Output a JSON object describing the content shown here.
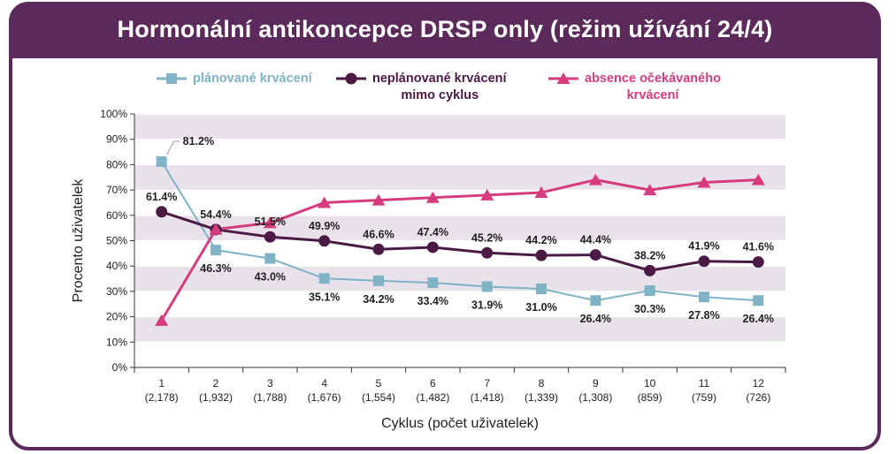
{
  "header": {
    "title": "Hormonální antikoncepce DRSP only (režim užívání 24/4)"
  },
  "colors": {
    "frame": "#5b2a5a",
    "planned": "#7fb3c5",
    "unplanned": "#4a1a45",
    "absence": "#d63c7d",
    "band": "#eae2ea"
  },
  "chart_data": {
    "type": "line",
    "title": "",
    "xlabel": "Cyklus (počet uživatelek)",
    "ylabel": "Procento uživatelek",
    "ylim": [
      0,
      100
    ],
    "yticks": [
      "0%",
      "10%",
      "20%",
      "30%",
      "40%",
      "50%",
      "60%",
      "70%",
      "80%",
      "90%",
      "100%"
    ],
    "categories": [
      "1",
      "2",
      "3",
      "4",
      "5",
      "6",
      "7",
      "8",
      "9",
      "10",
      "11",
      "12"
    ],
    "category_sublabels": [
      "(2,178)",
      "(1,932)",
      "(1,788)",
      "(1,676)",
      "(1,554)",
      "(1,482)",
      "(1,418)",
      "(1,339)",
      "(1,308)",
      "(859)",
      "(759)",
      "(726)"
    ],
    "legend_position": "top",
    "series": [
      {
        "name": "plánované krvácení",
        "marker": "square",
        "color": "#7fb3c5",
        "values": [
          81.2,
          46.3,
          43.0,
          35.1,
          34.2,
          33.4,
          31.9,
          31.0,
          26.4,
          30.3,
          27.8,
          26.4
        ],
        "labels": [
          "81.2%",
          "46.3%",
          "43.0%",
          "35.1%",
          "34.2%",
          "33.4%",
          "31.9%",
          "31.0%",
          "26.4%",
          "30.3%",
          "27.8%",
          "26.4%"
        ]
      },
      {
        "name": "neplánované krvácení mimo cyklus",
        "name_lines": [
          "neplánované krvácení",
          "mimo cyklus"
        ],
        "marker": "circle",
        "color": "#4a1a45",
        "values": [
          61.4,
          54.4,
          51.5,
          49.9,
          46.6,
          47.4,
          45.2,
          44.2,
          44.4,
          38.2,
          41.9,
          41.6
        ],
        "labels": [
          "61.4%",
          "54.4%",
          "51.5%",
          "49.9%",
          "46.6%",
          "47.4%",
          "45.2%",
          "44.2%",
          "44.4%",
          "38.2%",
          "41.9%",
          "41.6%"
        ]
      },
      {
        "name": "absence očekávaného krvácení",
        "name_lines": [
          "absence očekávaného",
          "krvácení"
        ],
        "marker": "triangle",
        "color": "#d63c7d",
        "values": [
          18.5,
          54.5,
          57.0,
          65.0,
          66.0,
          67.0,
          68.0,
          69.0,
          74.0,
          70.0,
          73.0,
          74.0
        ]
      }
    ]
  }
}
